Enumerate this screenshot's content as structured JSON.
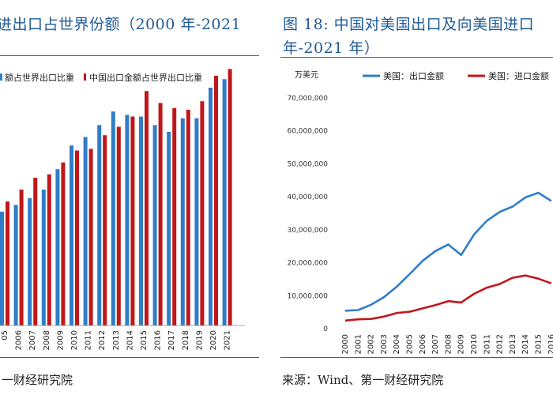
{
  "left": {
    "title": "进出口占世界份额（2000 年-2021",
    "source": "一财经研究院"
  },
  "right": {
    "title_line1": "图 18: 中国对美国出口及向美国进口",
    "title_line2": "年-2021 年）",
    "source": "来源：Wind、第一财经研究院"
  },
  "colors": {
    "blue": "#2f7dc9",
    "red": "#c0171b",
    "rule": "#2b65a5"
  },
  "chart_data": [
    {
      "type": "bar",
      "title": "",
      "legend": [
        "额占世界出口比重",
        "中国出口金额占世界出口比重"
      ],
      "categories": [
        "05",
        "2006",
        "2007",
        "2008",
        "2009",
        "2010",
        "2011",
        "2012",
        "2013",
        "2014",
        "2015",
        "2016",
        "2017",
        "2018",
        "2019",
        "2020",
        "2021"
      ],
      "series": [
        {
          "name": "额占世界出口比重",
          "values": [
            6.7,
            7.1,
            7.5,
            8.0,
            9.2,
            10.6,
            11.1,
            11.8,
            12.6,
            12.4,
            12.3,
            11.8,
            11.4,
            12.2,
            12.2,
            14.0,
            14.5
          ]
        },
        {
          "name": "中国出口金额占世界出口比重",
          "values": [
            7.3,
            8.0,
            8.7,
            8.9,
            9.6,
            10.3,
            10.4,
            11.2,
            11.7,
            12.3,
            13.8,
            13.1,
            12.8,
            12.7,
            13.2,
            14.7,
            15.1
          ]
        }
      ],
      "ylim": [
        0,
        16
      ]
    },
    {
      "type": "line",
      "ylabel": "万美元",
      "legend": [
        "美国：出口金额",
        "美国：进口金额"
      ],
      "x": [
        "2000",
        "2001",
        "2002",
        "2003",
        "2004",
        "2005",
        "2006",
        "2007",
        "2008",
        "2009",
        "2010",
        "2011",
        "2012",
        "2013",
        "2014",
        "2015",
        "2016"
      ],
      "series": [
        {
          "name": "美国：出口金额",
          "values": [
            5200000,
            5400000,
            7000000,
            9300000,
            12500000,
            16300000,
            20300000,
            23300000,
            25300000,
            22100000,
            28300000,
            32500000,
            35200000,
            36800000,
            39600000,
            41000000,
            38500000
          ]
        },
        {
          "name": "美国：进口金额",
          "values": [
            2200000,
            2600000,
            2700000,
            3400000,
            4500000,
            4900000,
            5900000,
            6900000,
            8100000,
            7700000,
            10300000,
            12200000,
            13300000,
            15200000,
            15900000,
            14900000,
            13500000
          ]
        }
      ],
      "yticks": [
        "0",
        "10,000,000",
        "20,000,000",
        "30,000,000",
        "40,000,000",
        "50,000,000",
        "60,000,000",
        "70,000,000"
      ],
      "ylim": [
        0,
        70000000
      ]
    }
  ]
}
